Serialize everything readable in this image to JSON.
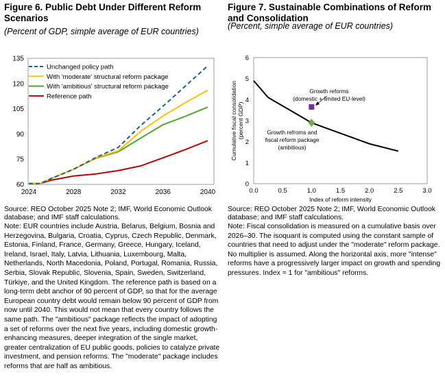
{
  "fig6": {
    "title": "Figure 6. Public Debt Under Different Reform Scenarios",
    "subtitle": "(Percent of GDP, simple average of EUR countries)",
    "source": "Source: REO October 2025 Note 2; IMF, World Economic Outlook database; and IMF staff calculations.",
    "note": "Note: EUR countries include Austria, Belarus, Belgium, Bosnia and Herzegovina, Bulgaria, Croatia, Cyprus, Czech Republic, Denmark, Estonia, Finland, France, Germany, Greece, Hungary, Iceland, Ireland, Israel, Italy, Latvia, Lithuania, Luxembourg, Malta, Netherlands, North Macedonia, Poland, Portugal, Romania, Russia, Serbia, Slovak Republic, Slovenia, Spain, Sweden, Switzerland, Türkiye, and the United Kingdom. The reference path is based on a long-term debt anchor of 90 percent of GDP, so that for the average European country debt would remain below 90 percent of GDP from now until 2040. This would not mean that every country follows the same path. The \"ambitious\" package reflects the impact of adopting a set of reforms over the next five years, including domestic growth-enhancing measures, deeper integration of the single market, greater centralization of EU public goods, policies to catalyze private investment, and pension reforms. The \"moderate\" package includes reforms that are half as ambitious."
  },
  "fig7": {
    "title": "Figure 7. Sustainable Combinations of Reform and Consolidation",
    "subtitle": "(Percent, simple average of EUR countries)",
    "source": "Source: REO October 2025 Note 2; IMF, World Economic Outlook database; and IMF staff calculations.",
    "note": "Note: Fiscal consolidation is measured on a cumulative basis over 2026–30. The isoquant is computed using the constant sample of countries that need to adjust under the \"moderate\" reform package. No multiplier is assumed. Along the horizontal axis, more \"intense\" reforms have a progressively larger impact on growth and spending pressures. Index = 1 for \"ambitious\" reforms."
  },
  "chart_data": [
    {
      "type": "line",
      "xlim": [
        2024,
        2040
      ],
      "ylim": [
        60,
        135
      ],
      "xticks": [
        "2024",
        "2028",
        "2032",
        "2036",
        "2040"
      ],
      "yticks": [
        "60",
        "75",
        "90",
        "105",
        "120",
        "135"
      ],
      "legend": "top-left",
      "x": [
        2024,
        2025,
        2026,
        2028,
        2030,
        2032,
        2034,
        2036,
        2038,
        2040
      ],
      "series": [
        {
          "name": "Unchanged policy path",
          "color": "#1f5f8b",
          "dash": true,
          "values": [
            60.5,
            60.5,
            63.5,
            69,
            76,
            82,
            95,
            106.5,
            118.5,
            130.5
          ]
        },
        {
          "name": "With 'moderate' structural reform package",
          "color": "#ffc000",
          "values": [
            60.5,
            60.5,
            63.5,
            69,
            75.8,
            80,
            91.5,
            100.7,
            108.6,
            116
          ]
        },
        {
          "name": "With 'ambitious' structural reform package",
          "color": "#4ea72e",
          "values": [
            60.5,
            60.5,
            63.5,
            69,
            75.5,
            79.4,
            87.5,
            95.5,
            100.5,
            106
          ]
        },
        {
          "name": "Reference path",
          "color": "#c00000",
          "values": [
            60.5,
            60.5,
            62.5,
            65,
            66.2,
            68.2,
            71,
            75.8,
            80.7,
            86
          ]
        }
      ]
    },
    {
      "type": "line",
      "xlabel": "Index of reform intensity",
      "ylabel": "Cumulative fiscal consolidation (percent GDP)",
      "xlim": [
        0,
        3
      ],
      "ylim": [
        0,
        6
      ],
      "xticks": [
        "0.0",
        "0.5",
        "1.0",
        "1.5",
        "2.0",
        "2.5",
        "3.0"
      ],
      "yticks": [
        "0",
        "1",
        "2",
        "3",
        "4",
        "5",
        "6"
      ],
      "curve": {
        "color": "#000000",
        "x": [
          0,
          0.25,
          0.5,
          0.75,
          1.0,
          1.5,
          2.0,
          2.5
        ],
        "y": [
          4.9,
          4.1,
          3.7,
          3.3,
          2.9,
          2.4,
          1.9,
          1.55
        ]
      },
      "points": [
        {
          "label": "Growth reforms (domestic  + limited EU-level)",
          "line1": "Growth reforms",
          "line2": "(domestic  + limited EU-level)",
          "x": 1.0,
          "y": 3.65,
          "color": "#7030a0",
          "marker": "square"
        },
        {
          "label": "Growth refroms and fiscal reform package (ambitious)",
          "line1": "Growth refroms and",
          "line2": "fiscal reform package",
          "line3": "(ambitious)",
          "x": 1.0,
          "y": 2.9,
          "color": "#70ad47",
          "marker": "diamond"
        }
      ]
    }
  ]
}
